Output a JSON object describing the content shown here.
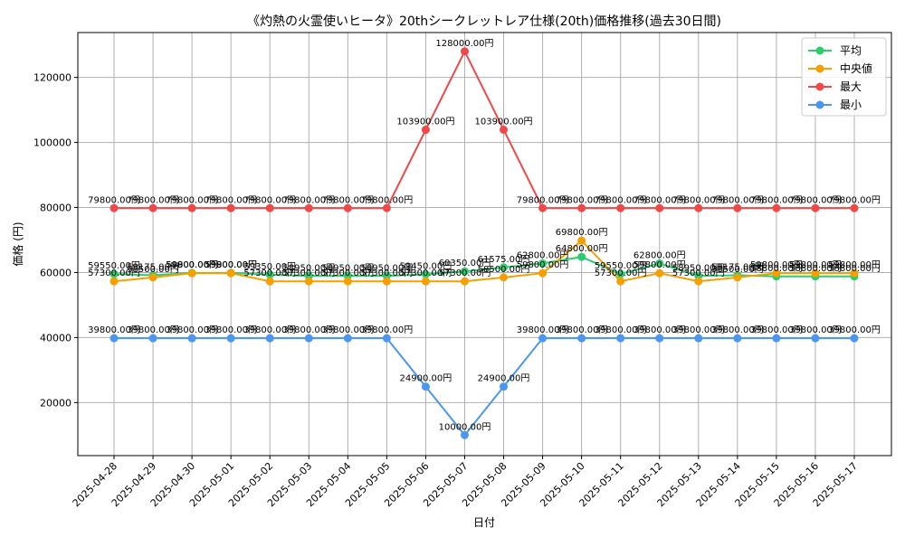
{
  "chart_data": {
    "type": "line",
    "title": "《灼熱の火霊使いヒータ》20thシークレットレア仕様(20th)価格推移(過去30日間)",
    "xlabel": "日付",
    "ylabel": "価格 (円)",
    "ylim": [
      3700,
      133800
    ],
    "yticks": [
      20000,
      40000,
      60000,
      80000,
      100000,
      120000
    ],
    "grid": true,
    "legend_position": "top-right",
    "label_suffix": "円",
    "categories": [
      "2025-04-28",
      "2025-04-29",
      "2025-04-30",
      "2025-05-01",
      "2025-05-02",
      "2025-05-03",
      "2025-05-04",
      "2025-05-05",
      "2025-05-06",
      "2025-05-07",
      "2025-05-08",
      "2025-05-09",
      "2025-05-10",
      "2025-05-11",
      "2025-05-12",
      "2025-05-13",
      "2025-05-14",
      "2025-05-15",
      "2025-05-16",
      "2025-05-17"
    ],
    "series": [
      {
        "name": "平均",
        "color": "#2ecc71",
        "values": [
          59550,
          59175,
          59900,
          59900,
          59350,
          58950,
          58950,
          58950,
          59450,
          60350,
          61575,
          62800,
          64800,
          59550,
          62800,
          58950,
          59175,
          58800,
          58800,
          58800
        ]
      },
      {
        "name": "中央値",
        "color": "#f5a000",
        "values": [
          57300,
          58500,
          59800,
          59800,
          57300,
          57300,
          57300,
          57300,
          57300,
          57300,
          58500,
          59800,
          69800,
          57300,
          59800,
          57300,
          58500,
          59800,
          59800,
          59800
        ]
      },
      {
        "name": "最大",
        "color": "#f04848",
        "values": [
          79800,
          79800,
          79800,
          79800,
          79800,
          79800,
          79800,
          79800,
          103900,
          128000,
          103900,
          79800,
          79800,
          79800,
          79800,
          79800,
          79800,
          79800,
          79800,
          79800
        ]
      },
      {
        "name": "最小",
        "color": "#4a96f0",
        "values": [
          39800,
          39800,
          39800,
          39800,
          39800,
          39800,
          39800,
          39800,
          24900,
          10000,
          24900,
          39800,
          39800,
          39800,
          39800,
          39800,
          39800,
          39800,
          39800,
          39800
        ]
      }
    ]
  }
}
